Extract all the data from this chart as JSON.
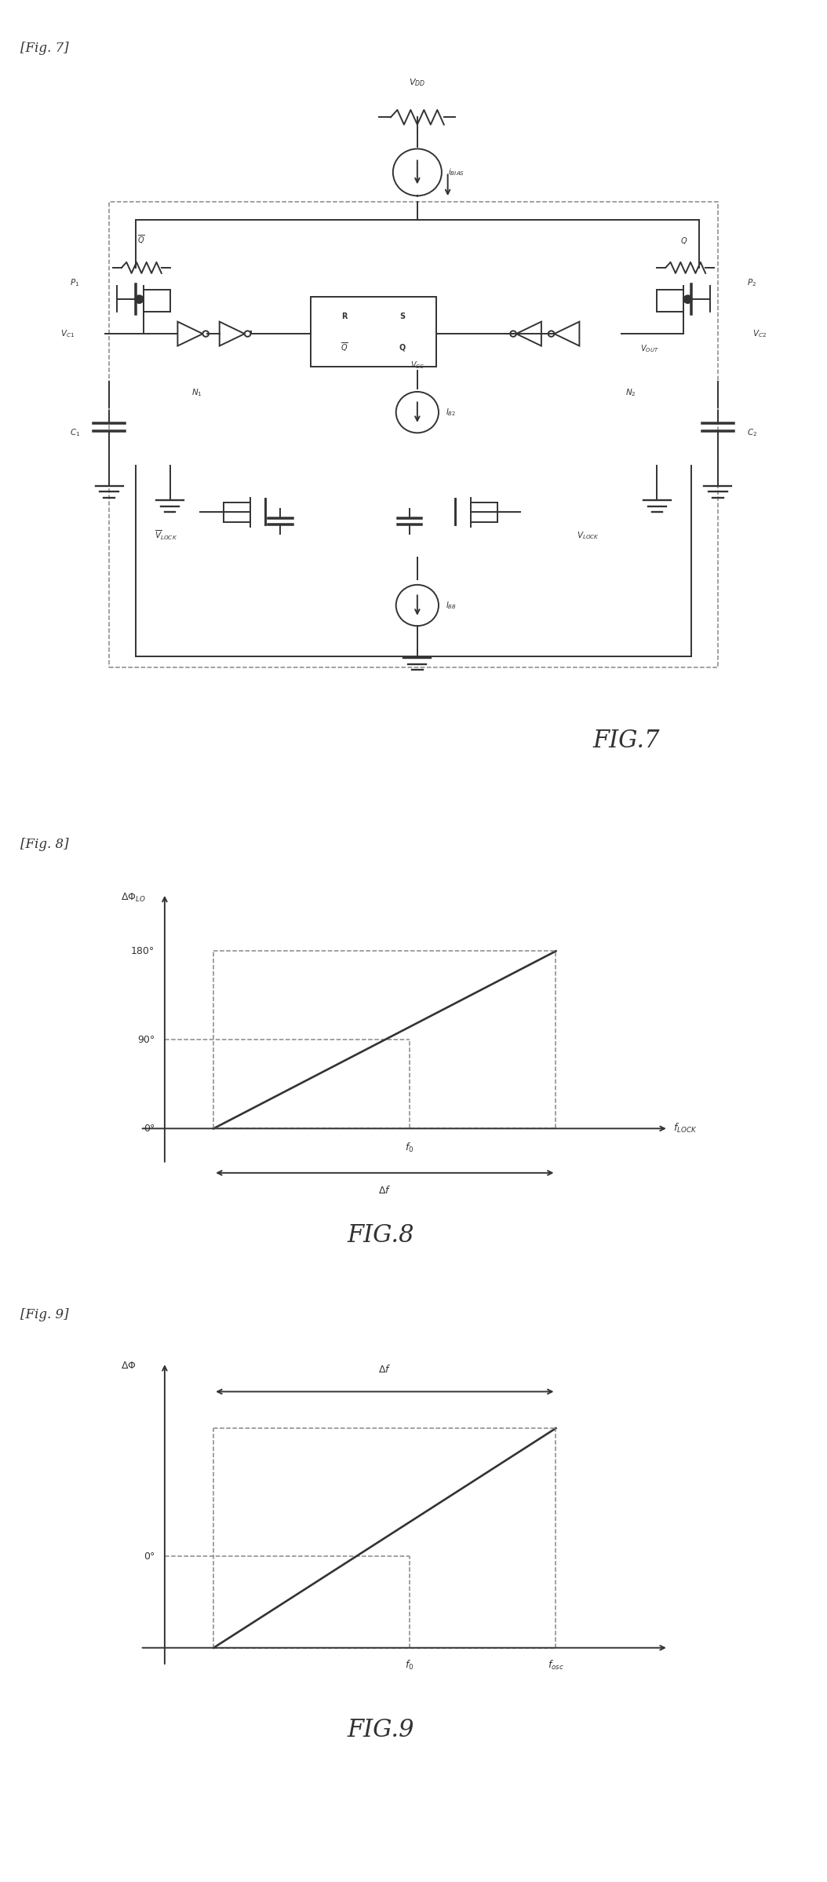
{
  "fig7_label": "[Fig. 7]",
  "fig8_label": "[Fig. 8]",
  "fig9_label": "[Fig. 9]",
  "fig7_caption": "FIG.7",
  "fig8_caption": "FIG.8",
  "fig9_caption": "FIG.9",
  "bg_color": "#ffffff",
  "line_color": "#333333",
  "dashed_color": "#888888",
  "text_color": "#333333",
  "label_color": "#555555",
  "fig8_180": "180°",
  "fig8_90": "90°",
  "fig8_0": "0°",
  "fig8_ylabel": "ΔΦ_LO",
  "fig8_xlabel": "f_LOCK",
  "fig8_deltaf": "Δf",
  "fig8_f0": "f_0",
  "fig9_ylabel": "ΔΦ",
  "fig9_0": "0°",
  "fig9_f0": "f_0",
  "fig9_xlabel": "f_osc",
  "fig9_deltaf": "Δf"
}
